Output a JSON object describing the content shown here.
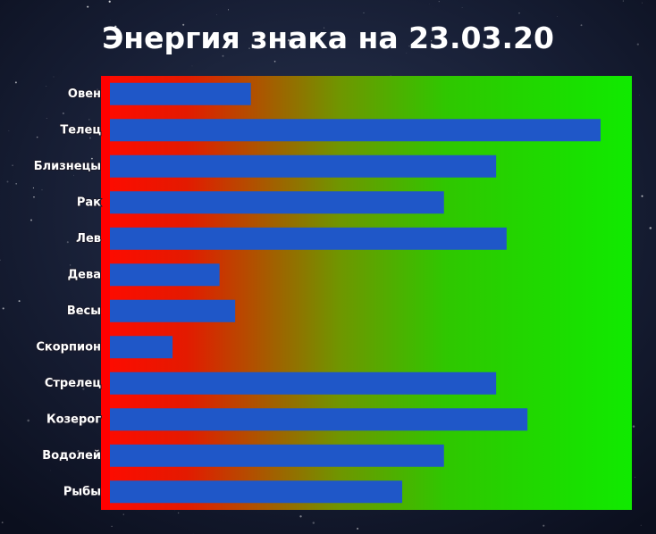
{
  "chart_data": {
    "type": "bar",
    "orientation": "horizontal",
    "title": "Энергия знака на 23.03.20",
    "categories": [
      "Овен",
      "Телец",
      "Близнецы",
      "Рак",
      "Лев",
      "Дева",
      "Весы",
      "Скорпион",
      "Стрелец",
      "Козерог",
      "Водолей",
      "Рыбы"
    ],
    "values": [
      27,
      94,
      74,
      64,
      76,
      21,
      24,
      12,
      74,
      80,
      64,
      56
    ],
    "color": "#1f57c8",
    "xlim": [
      0,
      100
    ]
  }
}
